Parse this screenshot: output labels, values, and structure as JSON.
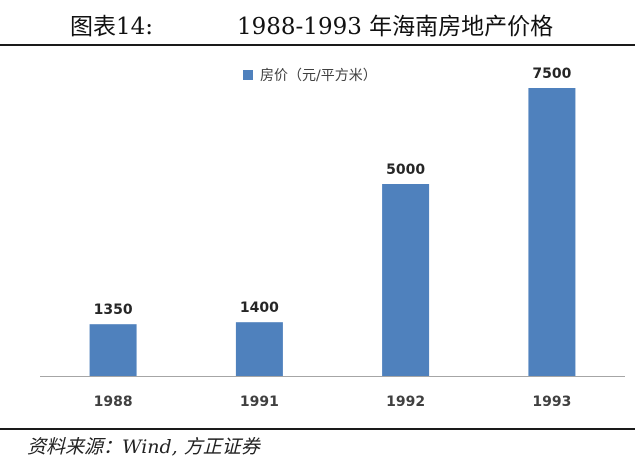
{
  "header": {
    "figure_label": "图表14:",
    "title": "1988-1993 年海南房地产价格"
  },
  "chart_data": {
    "type": "bar",
    "title": "1988-1993 年海南房地产价格",
    "categories": [
      "1988",
      "1991",
      "1992",
      "1993"
    ],
    "series": [
      {
        "name": "房价（元/平方米）",
        "values": [
          1350,
          1400,
          5000,
          7500
        ],
        "color": "#4f81bd"
      }
    ],
    "data_labels": [
      "1350",
      "1400",
      "5000",
      "7500"
    ],
    "ylim": [
      0,
      7500
    ],
    "xlabel": "",
    "ylabel": "",
    "grid": false,
    "legend_position": "top-left"
  },
  "footer": {
    "source": "资料来源：Wind, 方正证券"
  }
}
